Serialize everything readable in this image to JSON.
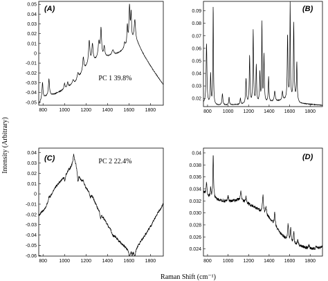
{
  "figure": {
    "ylabel": "Intensity (Arbitrary)",
    "xlabel": "Raman Shift (cm⁻¹)"
  },
  "chart_data": [
    {
      "type": "line",
      "panel_label": "(A)",
      "annotation": "PC 1 39.8%",
      "xlim": [
        760,
        1920
      ],
      "ylim": [
        -0.053,
        0.053
      ],
      "xticks": [
        "800",
        "1000",
        "1200",
        "1400",
        "1600",
        "1800"
      ],
      "yticks": [
        "0.05",
        "0.04",
        "0.03",
        "0.02",
        "0.01",
        "0",
        "-0.01",
        "-0.02",
        "-0.03",
        "-0.04",
        "-0.05"
      ],
      "baseline": [
        [
          760,
          -0.052
        ],
        [
          790,
          -0.046
        ],
        [
          830,
          -0.044
        ],
        [
          900,
          -0.042
        ],
        [
          1000,
          -0.037
        ],
        [
          1100,
          -0.03
        ],
        [
          1200,
          -0.015
        ],
        [
          1280,
          -0.008
        ],
        [
          1350,
          -0.004
        ],
        [
          1450,
          -0.003
        ],
        [
          1550,
          0.003
        ],
        [
          1600,
          0.007
        ],
        [
          1640,
          0.012
        ],
        [
          1680,
          0.01
        ],
        [
          1750,
          -0.004
        ],
        [
          1830,
          -0.018
        ],
        [
          1920,
          -0.032
        ]
      ],
      "peaks": [
        [
          795,
          0.016,
          5
        ],
        [
          855,
          0.017,
          6
        ],
        [
          1000,
          0.006,
          6
        ],
        [
          1030,
          0.005,
          6
        ],
        [
          1080,
          0.004,
          8
        ],
        [
          1125,
          0.006,
          8
        ],
        [
          1175,
          0.014,
          7
        ],
        [
          1230,
          0.024,
          8
        ],
        [
          1260,
          0.018,
          7
        ],
        [
          1320,
          0.016,
          9
        ],
        [
          1340,
          0.028,
          6
        ],
        [
          1370,
          0.01,
          6
        ],
        [
          1450,
          0.006,
          12
        ],
        [
          1560,
          0.006,
          7
        ],
        [
          1585,
          0.02,
          5
        ],
        [
          1605,
          0.038,
          6
        ],
        [
          1620,
          0.028,
          5
        ],
        [
          1655,
          0.022,
          8
        ]
      ],
      "noise": 0.0004
    },
    {
      "type": "line",
      "panel_label": "(B)",
      "annotation": "",
      "xlim": [
        760,
        1920
      ],
      "ylim": [
        0.0135,
        0.0975
      ],
      "xticks": [
        "800",
        "1000",
        "1200",
        "1400",
        "1600",
        "1800"
      ],
      "yticks": [
        "0.09",
        "0.08",
        "0.07",
        "0.06",
        "0.05",
        "0.04",
        "0.03",
        "0.02"
      ],
      "baseline": [
        [
          760,
          0.016
        ],
        [
          900,
          0.0145
        ],
        [
          1100,
          0.015
        ],
        [
          1300,
          0.016
        ],
        [
          1500,
          0.018
        ],
        [
          1650,
          0.02
        ],
        [
          1700,
          0.016
        ],
        [
          1920,
          0.0145
        ]
      ],
      "peaks": [
        [
          790,
          0.048,
          5
        ],
        [
          830,
          0.024,
          4
        ],
        [
          855,
          0.08,
          3
        ],
        [
          945,
          0.009,
          5
        ],
        [
          1010,
          0.006,
          4
        ],
        [
          1120,
          0.005,
          4
        ],
        [
          1175,
          0.02,
          5
        ],
        [
          1210,
          0.038,
          4
        ],
        [
          1245,
          0.058,
          4
        ],
        [
          1275,
          0.03,
          4
        ],
        [
          1310,
          0.024,
          4
        ],
        [
          1330,
          0.064,
          3
        ],
        [
          1350,
          0.038,
          4
        ],
        [
          1395,
          0.02,
          4
        ],
        [
          1455,
          0.008,
          6
        ],
        [
          1530,
          0.007,
          5
        ],
        [
          1580,
          0.052,
          4
        ],
        [
          1605,
          0.078,
          3
        ],
        [
          1640,
          0.06,
          4
        ],
        [
          1670,
          0.03,
          4
        ]
      ],
      "noise": 0.00025
    },
    {
      "type": "line",
      "panel_label": "(C)",
      "annotation": "PC 2 22.4%",
      "xlim": [
        760,
        1920
      ],
      "ylim": [
        -0.0605,
        0.0445
      ],
      "xticks": [
        "800",
        "1000",
        "1200",
        "1400",
        "1600",
        "1800"
      ],
      "yticks": [
        "0.04",
        "0.03",
        "0.02",
        "0.01",
        "0",
        "-0.01",
        "-0.02",
        "-0.03",
        "-0.04",
        "-0.05",
        "-0.06"
      ],
      "baseline": [
        [
          760,
          -0.021
        ],
        [
          820,
          -0.014
        ],
        [
          900,
          0.004
        ],
        [
          1000,
          0.018
        ],
        [
          1060,
          0.026
        ],
        [
          1100,
          0.03
        ],
        [
          1150,
          0.014
        ],
        [
          1200,
          0.006
        ],
        [
          1260,
          -0.002
        ],
        [
          1300,
          -0.012
        ],
        [
          1400,
          -0.03
        ],
        [
          1500,
          -0.045
        ],
        [
          1560,
          -0.051
        ],
        [
          1600,
          -0.055
        ],
        [
          1650,
          -0.055
        ],
        [
          1700,
          -0.048
        ],
        [
          1800,
          -0.032
        ],
        [
          1870,
          -0.018
        ],
        [
          1920,
          -0.01
        ]
      ],
      "peaks": [
        [
          855,
          0.003,
          6
        ],
        [
          1003,
          -0.006,
          6
        ],
        [
          1085,
          0.01,
          8
        ],
        [
          1125,
          -0.01,
          6
        ],
        [
          1175,
          0.003,
          8
        ],
        [
          1240,
          -0.004,
          8
        ],
        [
          1335,
          -0.006,
          6
        ],
        [
          1450,
          -0.003,
          10
        ],
        [
          1605,
          -0.007,
          6
        ],
        [
          1630,
          -0.004,
          5
        ],
        [
          1655,
          -0.006,
          8
        ]
      ],
      "noise": 0.0012
    },
    {
      "type": "line",
      "panel_label": "(D)",
      "annotation": "",
      "xlim": [
        760,
        1920
      ],
      "ylim": [
        0.0228,
        0.0408
      ],
      "xticks": [
        "800",
        "1000",
        "1200",
        "1400",
        "1600",
        "1800"
      ],
      "yticks": [
        "0.04",
        "0.038",
        "0.036",
        "0.034",
        "0.032",
        "0.030",
        "0.028",
        "0.026",
        "0.024"
      ],
      "baseline": [
        [
          760,
          0.0335
        ],
        [
          800,
          0.0328
        ],
        [
          900,
          0.0322
        ],
        [
          1000,
          0.0318
        ],
        [
          1100,
          0.0322
        ],
        [
          1200,
          0.0315
        ],
        [
          1300,
          0.0305
        ],
        [
          1400,
          0.0292
        ],
        [
          1500,
          0.0268
        ],
        [
          1600,
          0.025
        ],
        [
          1700,
          0.0245
        ],
        [
          1800,
          0.024
        ],
        [
          1850,
          0.024
        ],
        [
          1920,
          0.0243
        ]
      ],
      "peaks": [
        [
          790,
          0.002,
          5
        ],
        [
          830,
          0.0015,
          4
        ],
        [
          855,
          0.0072,
          4
        ],
        [
          1000,
          0.001,
          6
        ],
        [
          1125,
          0.0015,
          6
        ],
        [
          1175,
          0.001,
          6
        ],
        [
          1340,
          0.003,
          6
        ],
        [
          1370,
          0.0012,
          6
        ],
        [
          1455,
          0.0022,
          5
        ],
        [
          1585,
          0.0028,
          6
        ],
        [
          1610,
          0.0024,
          5
        ],
        [
          1640,
          0.002,
          5
        ],
        [
          1680,
          0.0008,
          6
        ],
        [
          1790,
          0.0006,
          6
        ],
        [
          1860,
          0.0004,
          8
        ]
      ],
      "noise": 0.00025
    }
  ]
}
